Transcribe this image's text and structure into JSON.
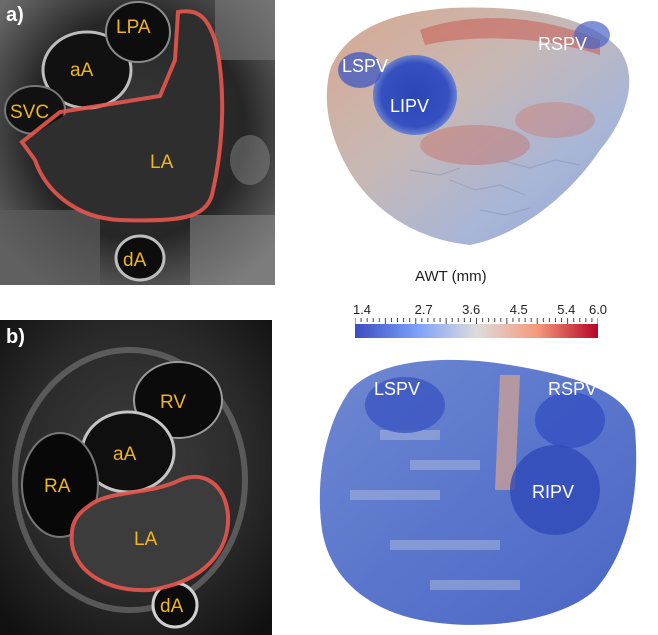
{
  "panel_a": {
    "letter": "a)",
    "labels": {
      "lpa": "LPA",
      "aA": "aA",
      "svc": "SVC",
      "la": "LA",
      "dA": "dA"
    },
    "render_labels": {
      "lspv": "LSPV",
      "lipv": "LIPV",
      "rspv": "RSPV"
    }
  },
  "panel_b": {
    "letter": "b)",
    "labels": {
      "rv": "RV",
      "aA": "aA",
      "ra": "RA",
      "la": "LA",
      "dA": "dA"
    },
    "render_labels": {
      "lspv": "LSPV",
      "rspv": "RSPV",
      "ripv": "RIPV"
    }
  },
  "colorbar": {
    "title": "AWT (mm)",
    "ticks": [
      "1.4",
      "2.7",
      "3.6",
      "4.5",
      "5.4",
      "6.0"
    ],
    "tick_values": [
      1.4,
      2.7,
      3.6,
      4.5,
      5.4,
      6.0
    ],
    "range": [
      1.4,
      6.0
    ],
    "colors": {
      "low": "#3b4cc0",
      "mid": "#dddcdc",
      "high": "#b40426"
    }
  },
  "colors": {
    "contour": "#e8574f",
    "label": "#f2b51a"
  }
}
